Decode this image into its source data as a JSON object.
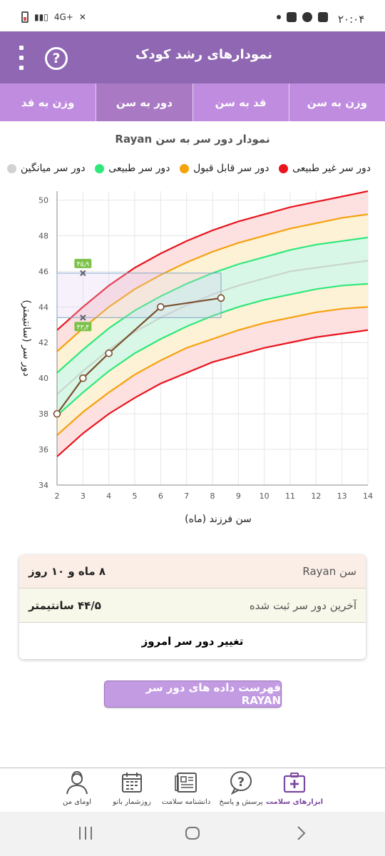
{
  "status_bar": {
    "time": "۲۰:۰۴",
    "network": "4G+"
  },
  "app_bar": {
    "title": "نمودارهای رشد کودک",
    "help_icon": "question-circle-icon",
    "menu_icon": "more-vert-icon"
  },
  "tabs": [
    {
      "label": "وزن به سن",
      "active": false
    },
    {
      "label": "قد به سن",
      "active": false
    },
    {
      "label": "دور به سن",
      "active": true
    },
    {
      "label": "وزن به قد",
      "active": false
    }
  ],
  "chart_header": {
    "title": "نمودار دور سر به سن Rayan"
  },
  "legend": [
    {
      "label": "دور سر غیر طبیعی",
      "color": "#e8151e"
    },
    {
      "label": "دور سر قابل قبول",
      "color": "#f5a20c"
    },
    {
      "label": "دور سر طبیعی",
      "color": "#2ee87a"
    },
    {
      "label": "دور سر میانگین",
      "color": "#d2d2d2"
    }
  ],
  "chart_data": {
    "type": "line",
    "xlabel": "سن فرزند (ماه)",
    "ylabel": "دور سر (سانتیمتر)",
    "xlim": [
      2,
      14
    ],
    "ylim": [
      34,
      50.5
    ],
    "x_ticks": [
      2,
      3,
      4,
      5,
      6,
      7,
      8,
      9,
      10,
      11,
      12,
      13,
      14
    ],
    "y_ticks": [
      34,
      36,
      38,
      40,
      42,
      44,
      46,
      48,
      50
    ],
    "grid": true,
    "x": [
      2,
      3,
      4,
      5,
      6,
      7,
      8,
      9,
      10,
      11,
      12,
      13,
      14
    ],
    "series": [
      {
        "name": "دور سر غیر طبیعی",
        "color": "#e8151e",
        "values": [
          42.7,
          44.0,
          45.2,
          46.2,
          47.0,
          47.7,
          48.3,
          48.8,
          49.2,
          49.6,
          49.9,
          50.2,
          50.5
        ]
      },
      {
        "name": "دور سر قابل قبول",
        "color": "#f5a20c",
        "values": [
          41.5,
          42.8,
          44.0,
          45.0,
          45.8,
          46.5,
          47.1,
          47.6,
          48.0,
          48.4,
          48.7,
          49.0,
          49.2
        ]
      },
      {
        "name": "دور سر طبیعی",
        "color": "#2ee87a",
        "values": [
          40.3,
          41.6,
          42.8,
          43.8,
          44.6,
          45.3,
          45.9,
          46.4,
          46.8,
          47.2,
          47.5,
          47.7,
          47.9
        ]
      },
      {
        "name": "دور سر میانگین",
        "color": "#c8d6cc",
        "values": [
          39.1,
          40.4,
          41.6,
          42.6,
          43.4,
          44.1,
          44.7,
          45.2,
          45.6,
          46.0,
          46.2,
          46.4,
          46.6
        ]
      },
      {
        "name": "دور سر طبیعی",
        "color": "#2ee87a",
        "values": [
          37.9,
          39.2,
          40.4,
          41.4,
          42.2,
          42.9,
          43.5,
          44.0,
          44.4,
          44.7,
          45.0,
          45.2,
          45.3
        ]
      },
      {
        "name": "دور سر قابل قبول",
        "color": "#f5a20c",
        "values": [
          36.8,
          38.1,
          39.2,
          40.2,
          41.0,
          41.7,
          42.2,
          42.7,
          43.1,
          43.4,
          43.7,
          43.9,
          44.0
        ]
      },
      {
        "name": "دور سر غیر طبیعی",
        "color": "#e8151e",
        "values": [
          35.6,
          36.9,
          38.0,
          38.9,
          39.7,
          40.3,
          40.9,
          41.3,
          41.7,
          42.0,
          42.3,
          42.5,
          42.7
        ]
      }
    ],
    "measurements": {
      "color": "#7a4f2c",
      "x": [
        2,
        3,
        4,
        6,
        8.33
      ],
      "y": [
        38.0,
        40.0,
        41.4,
        44.0,
        44.5
      ]
    },
    "markers": [
      {
        "x": 3,
        "y": 45.9,
        "label": "۴۵٫۹"
      },
      {
        "x": 3,
        "y": 43.4,
        "label": "۴۳٫۴"
      }
    ],
    "normal_range_box": {
      "x": [
        2,
        8.33
      ],
      "y": [
        43.4,
        45.9
      ]
    }
  },
  "info_card": {
    "age_label": "سن Rayan",
    "age_value": "۸ ماه و ۱۰ روز",
    "last_label": "آخرین دور سر ثبت شده",
    "last_value": "۴۴/۵ سانتیمتر",
    "change_label": "تغییر دور سر امروز"
  },
  "list_button": {
    "label": "فهرست داده های دور سر RAYAN"
  },
  "bottom_nav": [
    {
      "label": "ابزارهای سلامت",
      "icon": "health-kit-icon",
      "active": true
    },
    {
      "label": "پرسش و پاسخ",
      "icon": "question-bubble-icon",
      "active": false
    },
    {
      "label": "دانشنامه سلامت",
      "icon": "encyclopedia-icon",
      "active": false
    },
    {
      "label": "روزشمار بانو",
      "icon": "calendar-icon",
      "active": false
    },
    {
      "label": "اومای من",
      "icon": "profile-icon",
      "active": false
    }
  ]
}
